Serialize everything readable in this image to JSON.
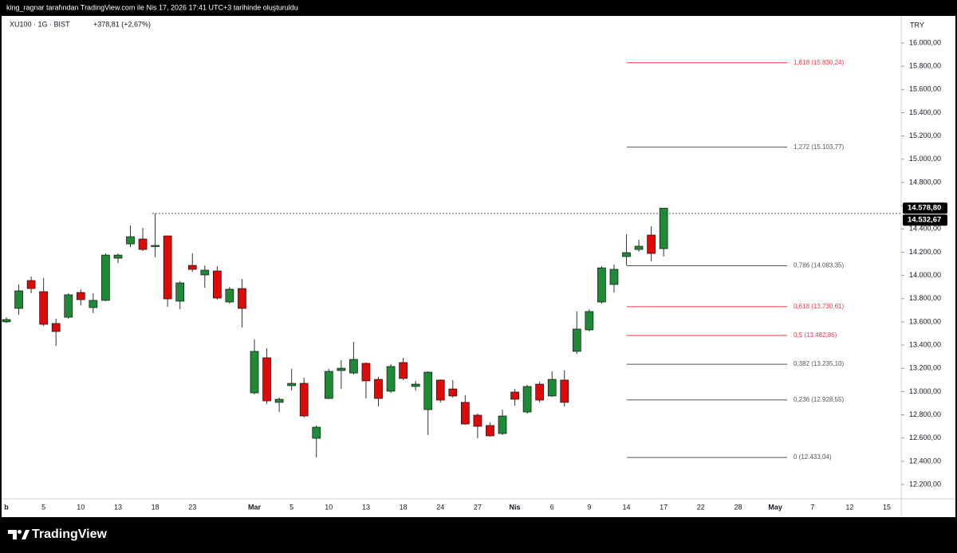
{
  "chart_data": {
    "type": "candlestick",
    "attribution": "king_ragnar tarafından TradingView.com ile Nis 17, 2026 17:41 UTC+3 tarihinde oluşturuldu",
    "title": "XU100 · 1G · BIST",
    "change": "+378,81 (+2,67%)",
    "currency": "TRY",
    "brand": "TradingView",
    "up_color": "#1f8a35",
    "down_color": "#dd0a0a",
    "categories": [
      "b",
      null,
      null,
      "5",
      null,
      null,
      "10",
      null,
      null,
      "13",
      null,
      null,
      "18",
      null,
      null,
      "23",
      null,
      null,
      null,
      null,
      "Mar",
      null,
      null,
      "5",
      null,
      null,
      "10",
      null,
      null,
      "13",
      null,
      null,
      "18",
      null,
      null,
      "24",
      null,
      null,
      "27",
      null,
      null,
      "Nis",
      null,
      null,
      "6",
      null,
      null,
      "9",
      null,
      null,
      "14",
      null,
      null,
      "17",
      null,
      null,
      "22",
      null,
      null,
      "28",
      null,
      null,
      "May",
      null,
      null,
      "7",
      null,
      null,
      "12",
      null,
      null,
      "15",
      null
    ],
    "open": [
      13600,
      13716,
      13956,
      13860,
      13586,
      13640,
      13853,
      13723,
      13785,
      14148,
      14271,
      14313,
      14251,
      14340,
      13778,
      14086,
      14004,
      14038,
      13771,
      13887,
      12989,
      13291,
      12907,
      13051,
      13071,
      12598,
      12941,
      13181,
      13160,
      13243,
      13105,
      13003,
      13250,
      13044,
      12845,
      13099,
      13023,
      12907,
      12797,
      12708,
      12639,
      12996,
      12824,
      13064,
      12962,
      13099,
      13346,
      13531,
      13771,
      13922,
      14162,
      14223,
      14347,
      14230,
      null,
      null,
      null,
      null,
      null,
      null,
      null,
      null,
      null,
      null,
      null,
      null,
      null,
      null,
      null,
      null,
      null,
      null,
      null
    ],
    "high": [
      13640,
      13922,
      13990,
      13977,
      13627,
      13846,
      13880,
      13846,
      14189,
      14189,
      14429,
      14409,
      14532.67,
      14340,
      13949,
      14189,
      14086,
      14079,
      13901,
      13970,
      13449,
      13373,
      12948,
      13195,
      13119,
      12708,
      13195,
      13270,
      13428,
      13250,
      13126,
      13236,
      13291,
      13092,
      13174,
      13105,
      13099,
      12968,
      12811,
      12735,
      12845,
      13023,
      13058,
      13085,
      13174,
      13181,
      13689,
      13709,
      14079,
      14093,
      14354,
      14306,
      14422,
      14578.8,
      null,
      null,
      null,
      null,
      null,
      null,
      null,
      null,
      null,
      null,
      null,
      null,
      null,
      null,
      null,
      null,
      null,
      null,
      null
    ],
    "low": [
      13590,
      13661,
      13846,
      13565,
      13394,
      13627,
      13743,
      13675,
      13778,
      14107,
      14244,
      14210,
      14155,
      13730,
      13709,
      14031,
      13894,
      13791,
      13757,
      13551,
      12975,
      12893,
      12824,
      13010,
      12776,
      12433.04,
      12934,
      13023,
      13147,
      12941,
      12872,
      12989,
      13099,
      13010,
      12626,
      12906,
      12948,
      12714,
      12598,
      12612,
      12626,
      12879,
      12811,
      12907,
      12955,
      12872,
      13325,
      13517,
      13757,
      13853,
      14086,
      14203,
      14121,
      14162,
      null,
      null,
      null,
      null,
      null,
      null,
      null,
      null,
      null,
      null,
      null,
      null,
      null,
      null,
      null,
      null,
      null,
      null,
      null
    ],
    "close": [
      13620,
      13867,
      13887,
      13579,
      13517,
      13833,
      13791,
      13785,
      14175,
      14175,
      14333,
      14223,
      14258,
      13798,
      13935,
      14052,
      14045,
      13805,
      13881,
      13716,
      13346,
      12920,
      12934,
      13071,
      12790,
      12694,
      13174,
      13201,
      13277,
      13092,
      12941,
      13216,
      13113,
      13064,
      13167,
      12927,
      12962,
      12721,
      12701,
      12619,
      12790,
      12934,
      13044,
      12927,
      13105,
      12907,
      13538,
      13689,
      14065,
      14052,
      14196,
      14251,
      14189,
      14578.8,
      null,
      null,
      null,
      null,
      null,
      null,
      null,
      null,
      null,
      null,
      null,
      null,
      null,
      null,
      null,
      null,
      null,
      null,
      null
    ],
    "ylim": [
      12077,
      16233
    ],
    "yticks": [
      {
        "value": 12200,
        "label": "12.200,00"
      },
      {
        "value": 12400,
        "label": "12.400,00"
      },
      {
        "value": 12600,
        "label": "12.600,00"
      },
      {
        "value": 12800,
        "label": "12.800,00"
      },
      {
        "value": 13000,
        "label": "13.000,00"
      },
      {
        "value": 13200,
        "label": "13.200,00"
      },
      {
        "value": 13400,
        "label": "13.400,00"
      },
      {
        "value": 13600,
        "label": "13.600,00"
      },
      {
        "value": 13800,
        "label": "13.800,00"
      },
      {
        "value": 14000,
        "label": "14.000,00"
      },
      {
        "value": 14200,
        "label": "14.200,00"
      },
      {
        "value": 14400,
        "label": "14.400,00"
      },
      {
        "value": 14600,
        "label": "14.600,00"
      },
      {
        "value": 14800,
        "label": "14.800,00"
      },
      {
        "value": 15000,
        "label": "15.000,00"
      },
      {
        "value": 15200,
        "label": "15.200,00"
      },
      {
        "value": 15400,
        "label": "15.400,00"
      },
      {
        "value": 15600,
        "label": "15.600,00"
      },
      {
        "value": 15800,
        "label": "15.800,00"
      },
      {
        "value": 16000,
        "label": "16.000,00"
      }
    ],
    "price_tags": [
      {
        "value": 14578.8,
        "label": "14.578,80"
      },
      {
        "value": 14532.67,
        "label": "14.532,67"
      }
    ],
    "fib_levels": [
      {
        "label": "1,618 (15.830,24)",
        "value": 15830.24,
        "color": "#f23645"
      },
      {
        "label": "1,272 (15.103,77)",
        "value": 15103.77,
        "color": "#555555"
      },
      {
        "label": "0,786 (14.083,35)",
        "value": 14083.35,
        "color": "#555555"
      },
      {
        "label": "0,618 (13.730,61)",
        "value": 13730.61,
        "color": "#f23645"
      },
      {
        "label": "0,5 (13.482,86)",
        "value": 13482.86,
        "color": "#f23645"
      },
      {
        "label": "0,382 (13.235,10)",
        "value": 13235.1,
        "color": "#555555"
      },
      {
        "label": "0,236 (12.928,55)",
        "value": 12928.55,
        "color": "#555555"
      },
      {
        "label": "0 (12.433,04)",
        "value": 12433.04,
        "color": "#555555"
      }
    ]
  }
}
